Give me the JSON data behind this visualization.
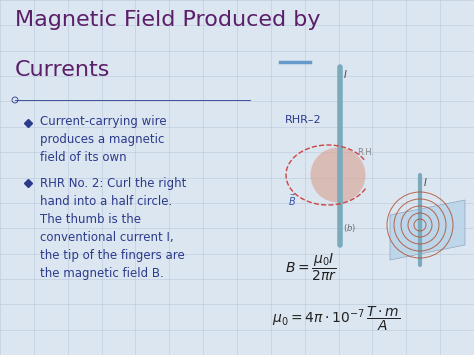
{
  "title_line1": "Magnetic Field Produced by",
  "title_line2": "Currents",
  "title_color": "#5B1F6A",
  "background_color": "#dce6f0",
  "grid_color": "#c0cfe0",
  "bullet_color": "#2B3B8C",
  "text_color": "#2B3B8C",
  "formula_color": "#222222",
  "bullet_points_0": "Current-carrying wire\nproduces a magnetic\nfield of its own",
  "bullet_points_1": "RHR No. 2: Curl the right\nhand into a half circle.\nThe thumb is the\nconventional current I,\nthe tip of the fingers are\nthe magnetic field B.",
  "rhr_label": "RHR–2",
  "title_fontsize": 16,
  "bullet_fontsize": 8.5,
  "formula_fontsize": 10,
  "wire_color": "#7aaabb",
  "hand_color": "#d9a090",
  "platform_color": "#b8d4e8",
  "circle_color": "#b05030",
  "rh_label": "R.H.",
  "b_label": "B",
  "i_label": "I",
  "b_label_color": "#3355aa",
  "rh_label_color": "#888888"
}
